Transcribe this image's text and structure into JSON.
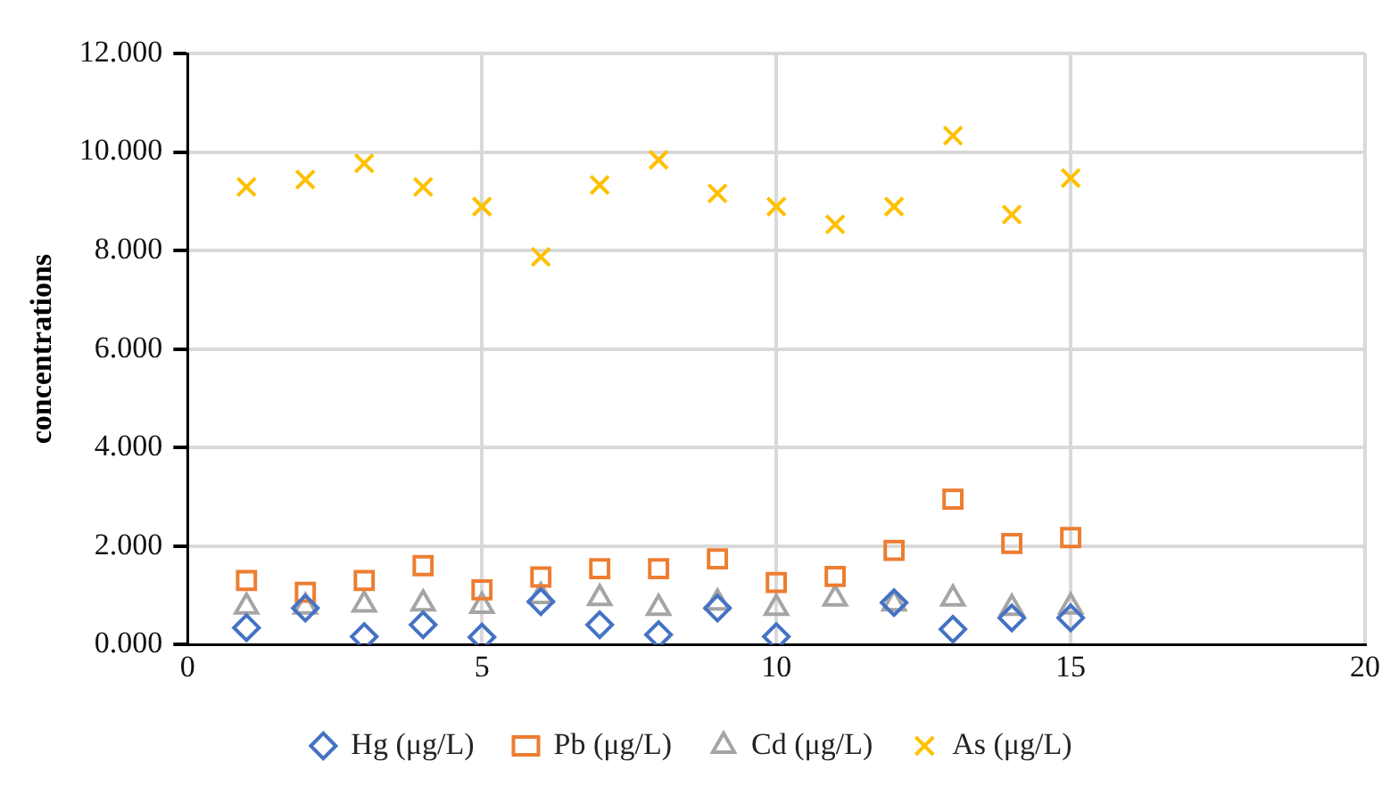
{
  "chart_data": {
    "type": "scatter",
    "ylabel": "concentrations",
    "xlim": [
      0,
      20
    ],
    "xticks": [
      0,
      5,
      10,
      15,
      20
    ],
    "ylim": [
      0,
      12
    ],
    "yticks": [
      {
        "value": 0,
        "label": "0.000"
      },
      {
        "value": 2,
        "label": "2.000"
      },
      {
        "value": 4,
        "label": "4.000"
      },
      {
        "value": 6,
        "label": "6.000"
      },
      {
        "value": 8,
        "label": "8.000"
      },
      {
        "value": 10,
        "label": "10.000"
      },
      {
        "value": 12,
        "label": "12.000"
      }
    ],
    "grid": true,
    "legend": "bottom",
    "x": [
      1,
      2,
      3,
      4,
      5,
      6,
      7,
      8,
      9,
      10,
      11,
      12,
      13,
      14,
      15
    ],
    "series": [
      {
        "name": "Hg (μg/L)",
        "color": "#4472c4",
        "marker": "diamond",
        "values": [
          0.34,
          0.74,
          0.16,
          0.4,
          0.15,
          0.87,
          0.4,
          0.2,
          0.74,
          0.16,
          null,
          0.85,
          0.31,
          0.54,
          0.54
        ]
      },
      {
        "name": "Pb (μg/L)",
        "color": "#ed7d31",
        "marker": "square",
        "values": [
          1.3,
          1.06,
          1.3,
          1.6,
          1.11,
          1.37,
          1.54,
          1.54,
          1.74,
          1.26,
          1.38,
          1.91,
          2.95,
          2.05,
          2.17
        ]
      },
      {
        "name": "Cd (μg/L)",
        "color": "#a5a5a5",
        "marker": "triangle",
        "values": [
          0.77,
          0.77,
          0.81,
          0.83,
          0.78,
          0.98,
          0.94,
          0.74,
          0.85,
          0.74,
          0.93,
          0.83,
          0.93,
          0.74,
          0.77
        ]
      },
      {
        "name": "As (μg/L)",
        "color": "#ffc000",
        "marker": "cross",
        "values": [
          9.29,
          9.44,
          9.77,
          9.29,
          8.89,
          7.87,
          9.33,
          9.84,
          9.16,
          8.89,
          8.53,
          8.89,
          10.33,
          8.73,
          9.47
        ]
      }
    ]
  }
}
